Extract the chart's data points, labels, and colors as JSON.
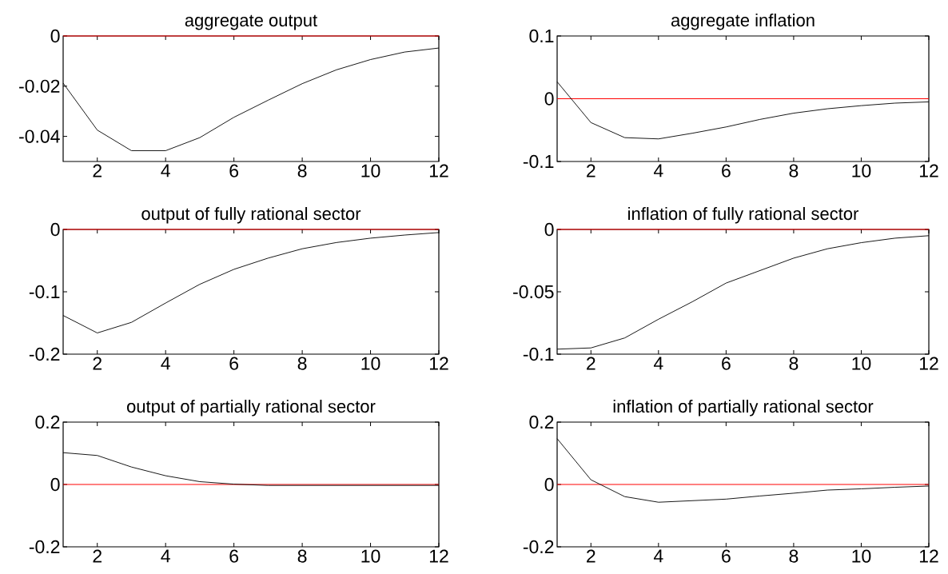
{
  "chart_data": [
    {
      "type": "line",
      "title": "aggregate output",
      "x": [
        1,
        2,
        3,
        4,
        5,
        6,
        7,
        8,
        9,
        10,
        11,
        12
      ],
      "values": [
        -0.0188,
        -0.0375,
        -0.0457,
        -0.0457,
        -0.0405,
        -0.0324,
        -0.0256,
        -0.019,
        -0.0135,
        -0.0094,
        -0.0064,
        -0.0048
      ],
      "color": "#000000",
      "xlim": [
        1,
        12
      ],
      "xticks": [
        2,
        4,
        6,
        8,
        10,
        12
      ],
      "ylim": [
        -0.05,
        0
      ],
      "yticks": [
        -0.04,
        -0.02,
        0
      ],
      "ref_lines": [
        {
          "axis": "y",
          "value": 0,
          "color": "#ff0000"
        }
      ]
    },
    {
      "type": "line",
      "title": "aggregate inflation",
      "x": [
        1,
        2,
        3,
        4,
        5,
        6,
        7,
        8,
        9,
        10,
        11,
        12
      ],
      "values": [
        0.027,
        -0.038,
        -0.062,
        -0.064,
        -0.055,
        -0.045,
        -0.033,
        -0.023,
        -0.016,
        -0.011,
        -0.007,
        -0.005
      ],
      "color": "#000000",
      "xlim": [
        1,
        12
      ],
      "xticks": [
        2,
        4,
        6,
        8,
        10,
        12
      ],
      "ylim": [
        -0.1,
        0.1
      ],
      "yticks": [
        -0.1,
        0,
        0.1
      ],
      "ref_lines": [
        {
          "axis": "y",
          "value": 0,
          "color": "#ff0000"
        }
      ]
    },
    {
      "type": "line",
      "title": "output of fully rational sector",
      "x": [
        1,
        2,
        3,
        4,
        5,
        6,
        7,
        8,
        9,
        10,
        11,
        12
      ],
      "values": [
        -0.138,
        -0.166,
        -0.149,
        -0.118,
        -0.088,
        -0.064,
        -0.046,
        -0.031,
        -0.021,
        -0.014,
        -0.009,
        -0.005
      ],
      "color": "#000000",
      "xlim": [
        1,
        12
      ],
      "xticks": [
        2,
        4,
        6,
        8,
        10,
        12
      ],
      "ylim": [
        -0.2,
        0
      ],
      "yticks": [
        -0.2,
        -0.1,
        0
      ],
      "ref_lines": [
        {
          "axis": "y",
          "value": 0,
          "color": "#ff0000"
        }
      ]
    },
    {
      "type": "line",
      "title": "inflation of fully rational sector",
      "x": [
        1,
        2,
        3,
        4,
        5,
        6,
        7,
        8,
        9,
        10,
        11,
        12
      ],
      "values": [
        -0.096,
        -0.095,
        -0.087,
        -0.072,
        -0.058,
        -0.043,
        -0.033,
        -0.023,
        -0.0155,
        -0.0106,
        -0.007,
        -0.005
      ],
      "color": "#000000",
      "xlim": [
        1,
        12
      ],
      "xticks": [
        2,
        4,
        6,
        8,
        10,
        12
      ],
      "ylim": [
        -0.1,
        0
      ],
      "yticks": [
        -0.1,
        -0.05,
        0
      ],
      "ref_lines": [
        {
          "axis": "y",
          "value": 0,
          "color": "#ff0000"
        }
      ]
    },
    {
      "type": "line",
      "title": "output of partially rational sector",
      "x": [
        1,
        2,
        3,
        4,
        5,
        6,
        7,
        8,
        9,
        10,
        11,
        12
      ],
      "values": [
        0.102,
        0.093,
        0.056,
        0.028,
        0.009,
        0.001,
        -0.003,
        -0.003,
        -0.003,
        -0.003,
        -0.003,
        -0.003
      ],
      "color": "#000000",
      "xlim": [
        1,
        12
      ],
      "xticks": [
        2,
        4,
        6,
        8,
        10,
        12
      ],
      "ylim": [
        -0.2,
        0.2
      ],
      "yticks": [
        -0.2,
        0,
        0.2
      ],
      "ref_lines": [
        {
          "axis": "y",
          "value": 0,
          "color": "#ff0000"
        }
      ]
    },
    {
      "type": "line",
      "title": "inflation of partially rational sector",
      "x": [
        1,
        2,
        3,
        4,
        5,
        6,
        7,
        8,
        9,
        10,
        11,
        12
      ],
      "values": [
        0.147,
        0.015,
        -0.039,
        -0.057,
        -0.052,
        -0.047,
        -0.037,
        -0.028,
        -0.018,
        -0.014,
        -0.009,
        -0.005
      ],
      "color": "#000000",
      "xlim": [
        1,
        12
      ],
      "xticks": [
        2,
        4,
        6,
        8,
        10,
        12
      ],
      "ylim": [
        -0.2,
        0.2
      ],
      "yticks": [
        -0.2,
        0,
        0.2
      ],
      "ref_lines": [
        {
          "axis": "y",
          "value": 0,
          "color": "#ff0000"
        }
      ]
    }
  ]
}
